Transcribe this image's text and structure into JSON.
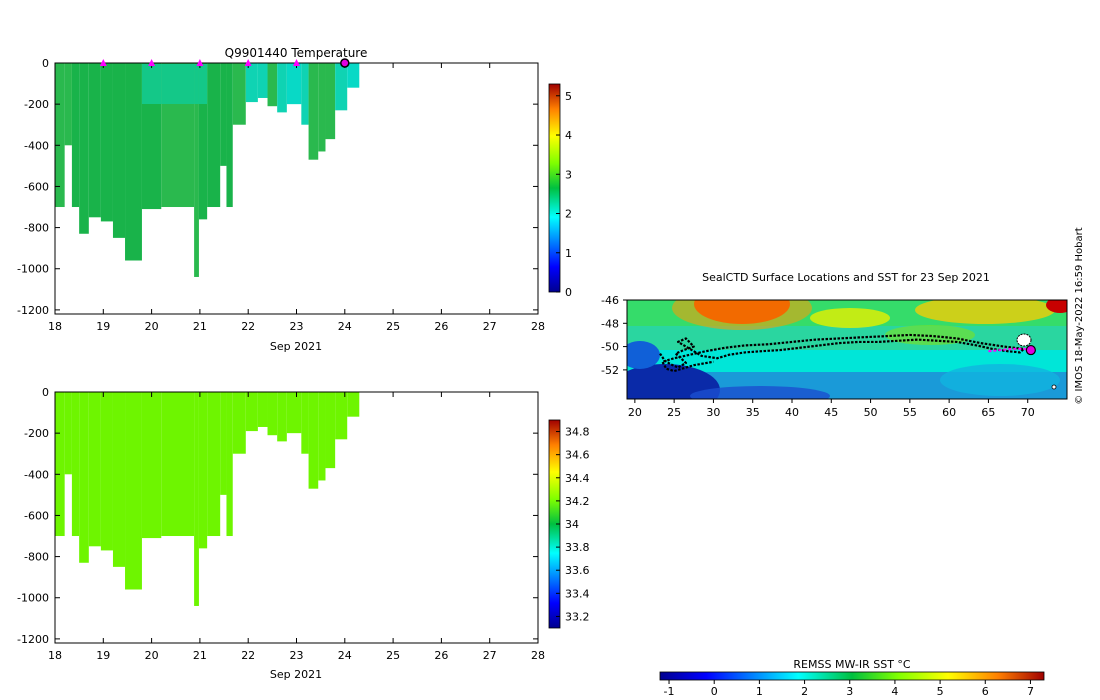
{
  "copyright": "© IMOS 18-May-2022 16:59 Hobart",
  "colors": {
    "temperature_fill": [
      "#19b34a",
      "#2ab94e",
      "#14c888",
      "#0fd3b3",
      "#08d9c6"
    ],
    "salinity_fill": "#6ef500",
    "track": "#000000",
    "recent_track": "#ff00ff",
    "marker": "#ff00ff",
    "current_position": "#e000e0"
  },
  "chart_data": [
    {
      "id": "temperature",
      "type": "heatmap",
      "title": "Q9901440  Temperature",
      "xlabel": "Sep 2021",
      "xlim": [
        18,
        28
      ],
      "x_ticks": [
        "18",
        "19",
        "20",
        "21",
        "22",
        "23",
        "24",
        "25",
        "26",
        "27",
        "28"
      ],
      "ylim": [
        -1220,
        0
      ],
      "y_ticks": [
        "0",
        "-200",
        "-400",
        "-600",
        "-800",
        "-1000",
        "-1200"
      ],
      "colorbar": {
        "range": [
          0,
          5.3
        ],
        "ticks": [
          "0",
          "1",
          "2",
          "3",
          "4",
          "5"
        ]
      },
      "surface_markers_x": [
        19,
        20,
        21,
        22,
        23
      ],
      "current_marker_x": 24,
      "profiles": [
        {
          "x0": 18.0,
          "x1": 18.2,
          "depth": 700,
          "temp": 2.2
        },
        {
          "x0": 18.2,
          "x1": 18.35,
          "depth": 400,
          "temp": 2.2
        },
        {
          "x0": 18.35,
          "x1": 18.5,
          "depth": 700,
          "temp": 2.1
        },
        {
          "x0": 18.5,
          "x1": 18.7,
          "depth": 830,
          "temp": 2.1
        },
        {
          "x0": 18.7,
          "x1": 18.95,
          "depth": 750,
          "temp": 2.1
        },
        {
          "x0": 18.95,
          "x1": 19.2,
          "depth": 770,
          "temp": 2.1
        },
        {
          "x0": 19.2,
          "x1": 19.45,
          "depth": 850,
          "temp": 2.1
        },
        {
          "x0": 19.45,
          "x1": 19.8,
          "depth": 960,
          "temp": 2.1
        },
        {
          "x0": 19.8,
          "x1": 20.2,
          "depth": 710,
          "temp": 2.1
        },
        {
          "x0": 20.2,
          "x1": 20.88,
          "depth": 700,
          "temp": 2.2
        },
        {
          "x0": 20.88,
          "x1": 20.98,
          "depth": 1040,
          "temp": 2.2
        },
        {
          "x0": 20.98,
          "x1": 21.15,
          "depth": 760,
          "temp": 2.1
        },
        {
          "x0": 21.15,
          "x1": 21.42,
          "depth": 700,
          "temp": 2.1
        },
        {
          "x0": 21.42,
          "x1": 21.55,
          "depth": 500,
          "temp": 2.1
        },
        {
          "x0": 21.55,
          "x1": 21.68,
          "depth": 700,
          "temp": 2.1
        },
        {
          "x0": 21.68,
          "x1": 21.95,
          "depth": 300,
          "temp": 2.2
        },
        {
          "x0": 21.95,
          "x1": 22.2,
          "depth": 190,
          "temp": 2.4
        },
        {
          "x0": 22.2,
          "x1": 22.4,
          "depth": 170,
          "temp": 2.4
        },
        {
          "x0": 22.4,
          "x1": 22.6,
          "depth": 210,
          "temp": 2.3
        },
        {
          "x0": 22.6,
          "x1": 22.8,
          "depth": 240,
          "temp": 2.4
        },
        {
          "x0": 22.8,
          "x1": 23.1,
          "depth": 200,
          "temp": 2.5
        },
        {
          "x0": 23.1,
          "x1": 23.25,
          "depth": 300,
          "temp": 2.4
        },
        {
          "x0": 23.25,
          "x1": 23.45,
          "depth": 470,
          "temp": 2.2
        },
        {
          "x0": 23.45,
          "x1": 23.6,
          "depth": 430,
          "temp": 2.2
        },
        {
          "x0": 23.6,
          "x1": 23.8,
          "depth": 370,
          "temp": 2.2
        },
        {
          "x0": 23.8,
          "x1": 24.05,
          "depth": 230,
          "temp": 2.4
        },
        {
          "x0": 24.05,
          "x1": 24.3,
          "depth": 120,
          "temp": 2.5
        }
      ]
    },
    {
      "id": "salinity",
      "type": "heatmap",
      "xlabel": "Sep 2021",
      "xlim": [
        18,
        28
      ],
      "x_ticks": [
        "18",
        "19",
        "20",
        "21",
        "22",
        "23",
        "24",
        "25",
        "26",
        "27",
        "28"
      ],
      "ylim": [
        -1220,
        0
      ],
      "y_ticks": [
        "0",
        "-200",
        "-400",
        "-600",
        "-800",
        "-1000",
        "-1200"
      ],
      "colorbar": {
        "range": [
          33.1,
          34.9
        ],
        "ticks": [
          "33.2",
          "33.4",
          "33.6",
          "33.8",
          "34",
          "34.2",
          "34.4",
          "34.6",
          "34.8"
        ]
      },
      "profiles_same_as": "temperature",
      "value": 34.1
    },
    {
      "id": "sst_map",
      "type": "heatmap",
      "title": "SealCTD Surface Locations and SST for 23 Sep 2021",
      "xlim": [
        19,
        75
      ],
      "x_ticks": [
        "20",
        "25",
        "30",
        "35",
        "40",
        "45",
        "50",
        "55",
        "60",
        "65",
        "70"
      ],
      "ylim": [
        -54.5,
        -46
      ],
      "y_ticks": [
        "-46",
        "-48",
        "-50",
        "-52"
      ],
      "colorbar": {
        "label": "REMSS MW-IR SST °C",
        "range": [
          -1.2,
          7.3
        ],
        "ticks": [
          "-1",
          "0",
          "1",
          "2",
          "3",
          "4",
          "5",
          "6",
          "7"
        ]
      },
      "track_points": [
        [
          23.2,
          -50.6
        ],
        [
          23.8,
          -51.2
        ],
        [
          24.5,
          -51.5
        ],
        [
          25.5,
          -51.8
        ],
        [
          26.5,
          -51.4
        ],
        [
          25.2,
          -50.6
        ],
        [
          26.2,
          -50.3
        ],
        [
          27.5,
          -50.0
        ],
        [
          26.5,
          -49.3
        ],
        [
          25.5,
          -49.6
        ],
        [
          28.5,
          -50.8
        ],
        [
          30.5,
          -51.0
        ],
        [
          32.0,
          -50.7
        ],
        [
          34.0,
          -50.5
        ],
        [
          36.0,
          -50.4
        ],
        [
          38.5,
          -50.3
        ],
        [
          41.0,
          -50.1
        ],
        [
          43.5,
          -49.9
        ],
        [
          46.0,
          -49.7
        ],
        [
          48.5,
          -49.6
        ],
        [
          51.0,
          -49.6
        ],
        [
          53.5,
          -49.5
        ],
        [
          56.0,
          -49.4
        ],
        [
          58.5,
          -49.5
        ],
        [
          61.0,
          -49.6
        ],
        [
          63.5,
          -49.9
        ],
        [
          65.5,
          -50.2
        ],
        [
          67.5,
          -50.4
        ],
        [
          69.0,
          -50.5
        ],
        [
          69.5,
          -50.2
        ],
        [
          67.0,
          -50.0
        ],
        [
          64.0,
          -49.7
        ],
        [
          61.0,
          -49.3
        ],
        [
          58.0,
          -49.1
        ],
        [
          55.0,
          -49.0
        ],
        [
          52.0,
          -49.1
        ],
        [
          49.0,
          -49.2
        ],
        [
          46.0,
          -49.3
        ],
        [
          43.0,
          -49.4
        ],
        [
          40.0,
          -49.6
        ],
        [
          37.0,
          -49.8
        ],
        [
          34.0,
          -49.9
        ],
        [
          31.5,
          -50.1
        ],
        [
          29.0,
          -50.4
        ],
        [
          27.0,
          -50.7
        ],
        [
          25.0,
          -51.0
        ],
        [
          23.5,
          -51.3
        ],
        [
          24.0,
          -51.9
        ],
        [
          25.0,
          -52.1
        ],
        [
          27.5,
          -51.6
        ],
        [
          30.0,
          -51.3
        ]
      ],
      "recent_track": [
        [
          65.0,
          -50.4
        ],
        [
          66.5,
          -50.3
        ],
        [
          68.0,
          -50.2
        ],
        [
          69.5,
          -50.2
        ],
        [
          70.3,
          -50.3
        ]
      ],
      "current_position": [
        70.4,
        -50.3
      ]
    }
  ]
}
